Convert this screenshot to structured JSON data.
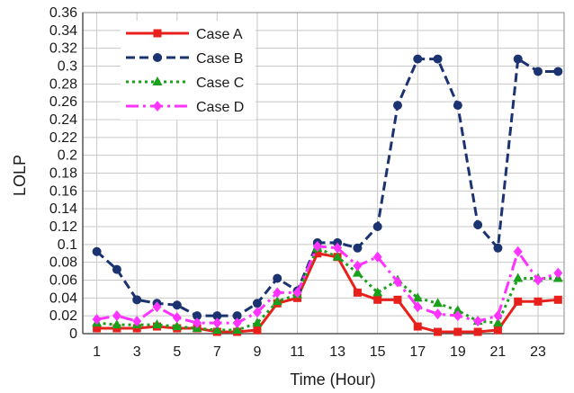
{
  "chart_data": {
    "type": "line",
    "title": "",
    "xlabel": "Time (Hour)",
    "ylabel": "LOLP",
    "x": [
      1,
      2,
      3,
      4,
      5,
      6,
      7,
      8,
      9,
      10,
      11,
      12,
      13,
      14,
      15,
      16,
      17,
      18,
      19,
      20,
      21,
      22,
      23,
      24
    ],
    "x_tick_labels": [
      "1",
      "3",
      "5",
      "7",
      "9",
      "11",
      "13",
      "15",
      "17",
      "19",
      "21",
      "23"
    ],
    "y_tick_labels": [
      "0",
      "0.02",
      "0.04",
      "0.06",
      "0.08",
      "0.1",
      "0.12",
      "0.14",
      "0.16",
      "0.18",
      "0.2",
      "0.22",
      "0.24",
      "0.26",
      "0.28",
      "0.3",
      "0.32",
      "0.34",
      "0.36"
    ],
    "xlim": [
      0.3,
      24.3
    ],
    "ylim": [
      0,
      0.36
    ],
    "grid": true,
    "legend_position": "top-left",
    "series": [
      {
        "name": "Case A",
        "color": "#e8201c",
        "dash": "solid",
        "marker": "square",
        "values": [
          0.006,
          0.006,
          0.006,
          0.008,
          0.006,
          0.006,
          0.002,
          0.002,
          0.004,
          0.034,
          0.04,
          0.09,
          0.086,
          0.046,
          0.038,
          0.038,
          0.008,
          0.002,
          0.002,
          0.002,
          0.004,
          0.036,
          0.036,
          0.038
        ]
      },
      {
        "name": "Case B",
        "color": "#1b3370",
        "dash": "dashed",
        "marker": "circle",
        "values": [
          0.092,
          0.072,
          0.038,
          0.034,
          0.032,
          0.02,
          0.02,
          0.02,
          0.034,
          0.062,
          0.048,
          0.102,
          0.102,
          0.096,
          0.12,
          0.256,
          0.308,
          0.308,
          0.256,
          0.122,
          0.096,
          0.308,
          0.294,
          0.294
        ]
      },
      {
        "name": "Case C",
        "color": "#1aa01a",
        "dash": "dotted",
        "marker": "triangle",
        "values": [
          0.012,
          0.01,
          0.01,
          0.01,
          0.008,
          0.006,
          0.004,
          0.004,
          0.012,
          0.036,
          0.044,
          0.096,
          0.086,
          0.068,
          0.046,
          0.06,
          0.04,
          0.034,
          0.026,
          0.014,
          0.012,
          0.062,
          0.062,
          0.062
        ]
      },
      {
        "name": "Case D",
        "color": "#ff33ff",
        "dash": "dashdot",
        "marker": "diamond",
        "values": [
          0.016,
          0.02,
          0.014,
          0.03,
          0.018,
          0.012,
          0.012,
          0.012,
          0.024,
          0.046,
          0.046,
          0.098,
          0.096,
          0.076,
          0.086,
          0.058,
          0.03,
          0.022,
          0.02,
          0.014,
          0.02,
          0.092,
          0.06,
          0.068
        ]
      }
    ]
  }
}
